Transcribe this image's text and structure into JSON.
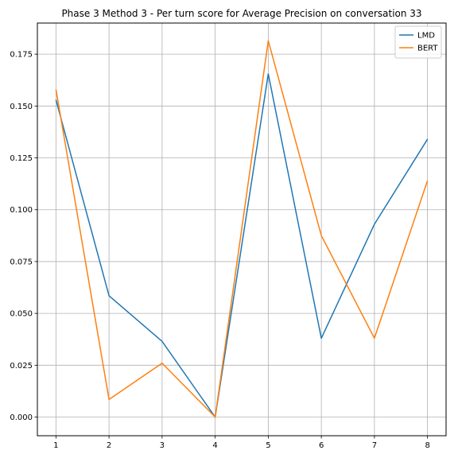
{
  "chart_data": {
    "type": "line",
    "title": "Phase 3 Method 3 - Per turn score for Average Precision on conversation 33",
    "xlabel": "",
    "ylabel": "",
    "x": [
      1,
      2,
      3,
      4,
      5,
      6,
      7,
      8
    ],
    "xticks": [
      "1",
      "2",
      "3",
      "4",
      "5",
      "6",
      "7",
      "8"
    ],
    "yticks": [
      "0.000",
      "0.025",
      "0.050",
      "0.075",
      "0.100",
      "0.125",
      "0.150",
      "0.175"
    ],
    "ylim": [
      -0.009,
      0.19
    ],
    "xlim": [
      0.65,
      8.35
    ],
    "grid": true,
    "legend_position": "top-right",
    "series": [
      {
        "name": "LMD",
        "color": "#1f77b4",
        "values": [
          0.153,
          0.0585,
          0.0365,
          0.0,
          0.1655,
          0.038,
          0.093,
          0.134
        ]
      },
      {
        "name": "BERT",
        "color": "#ff7f0e",
        "values": [
          0.158,
          0.0085,
          0.026,
          0.0,
          0.1815,
          0.0875,
          0.038,
          0.114
        ]
      }
    ]
  }
}
